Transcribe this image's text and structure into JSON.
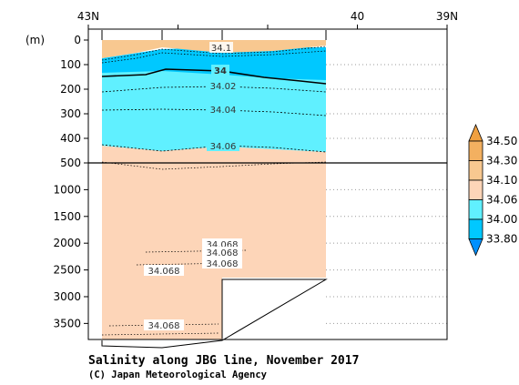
{
  "chart_data": {
    "type": "heatmap",
    "title": "Salinity along JBG line, November 2017",
    "credit": "(C) Japan Meteorological Agency",
    "xlabel": "",
    "ylabel": "(m)",
    "x_ticks": [
      {
        "lat": 43,
        "label": "43N"
      },
      {
        "lat": 42,
        "label": ""
      },
      {
        "lat": 41,
        "label": ""
      },
      {
        "lat": 40,
        "label": "40"
      },
      {
        "lat": 39,
        "label": "39N"
      }
    ],
    "xlim": [
      43,
      39
    ],
    "section_end_lat": 40.4,
    "y_axis_upper": {
      "range": [
        0,
        500
      ],
      "ticks": [
        "0",
        "100",
        "200",
        "300",
        "400",
        "500"
      ]
    },
    "y_axis_lower": {
      "range": [
        500,
        3800
      ],
      "ticks": [
        "1000",
        "1500",
        "2000",
        "2500",
        "3000",
        "3500"
      ]
    },
    "colorbar": {
      "levels": [
        "33.80",
        "34.00",
        "34.06",
        "34.10",
        "34.30",
        "34.50"
      ],
      "colors": [
        "#00c8ff",
        "#60f0ff",
        "#fdd5b8",
        "#f8c890",
        "#f3b060"
      ]
    },
    "contour_labels": [
      "34.1",
      "34",
      "34.02",
      "34.04",
      "34.06",
      "34.068",
      "34.068",
      "34.068",
      "34.068",
      "34.068"
    ]
  }
}
